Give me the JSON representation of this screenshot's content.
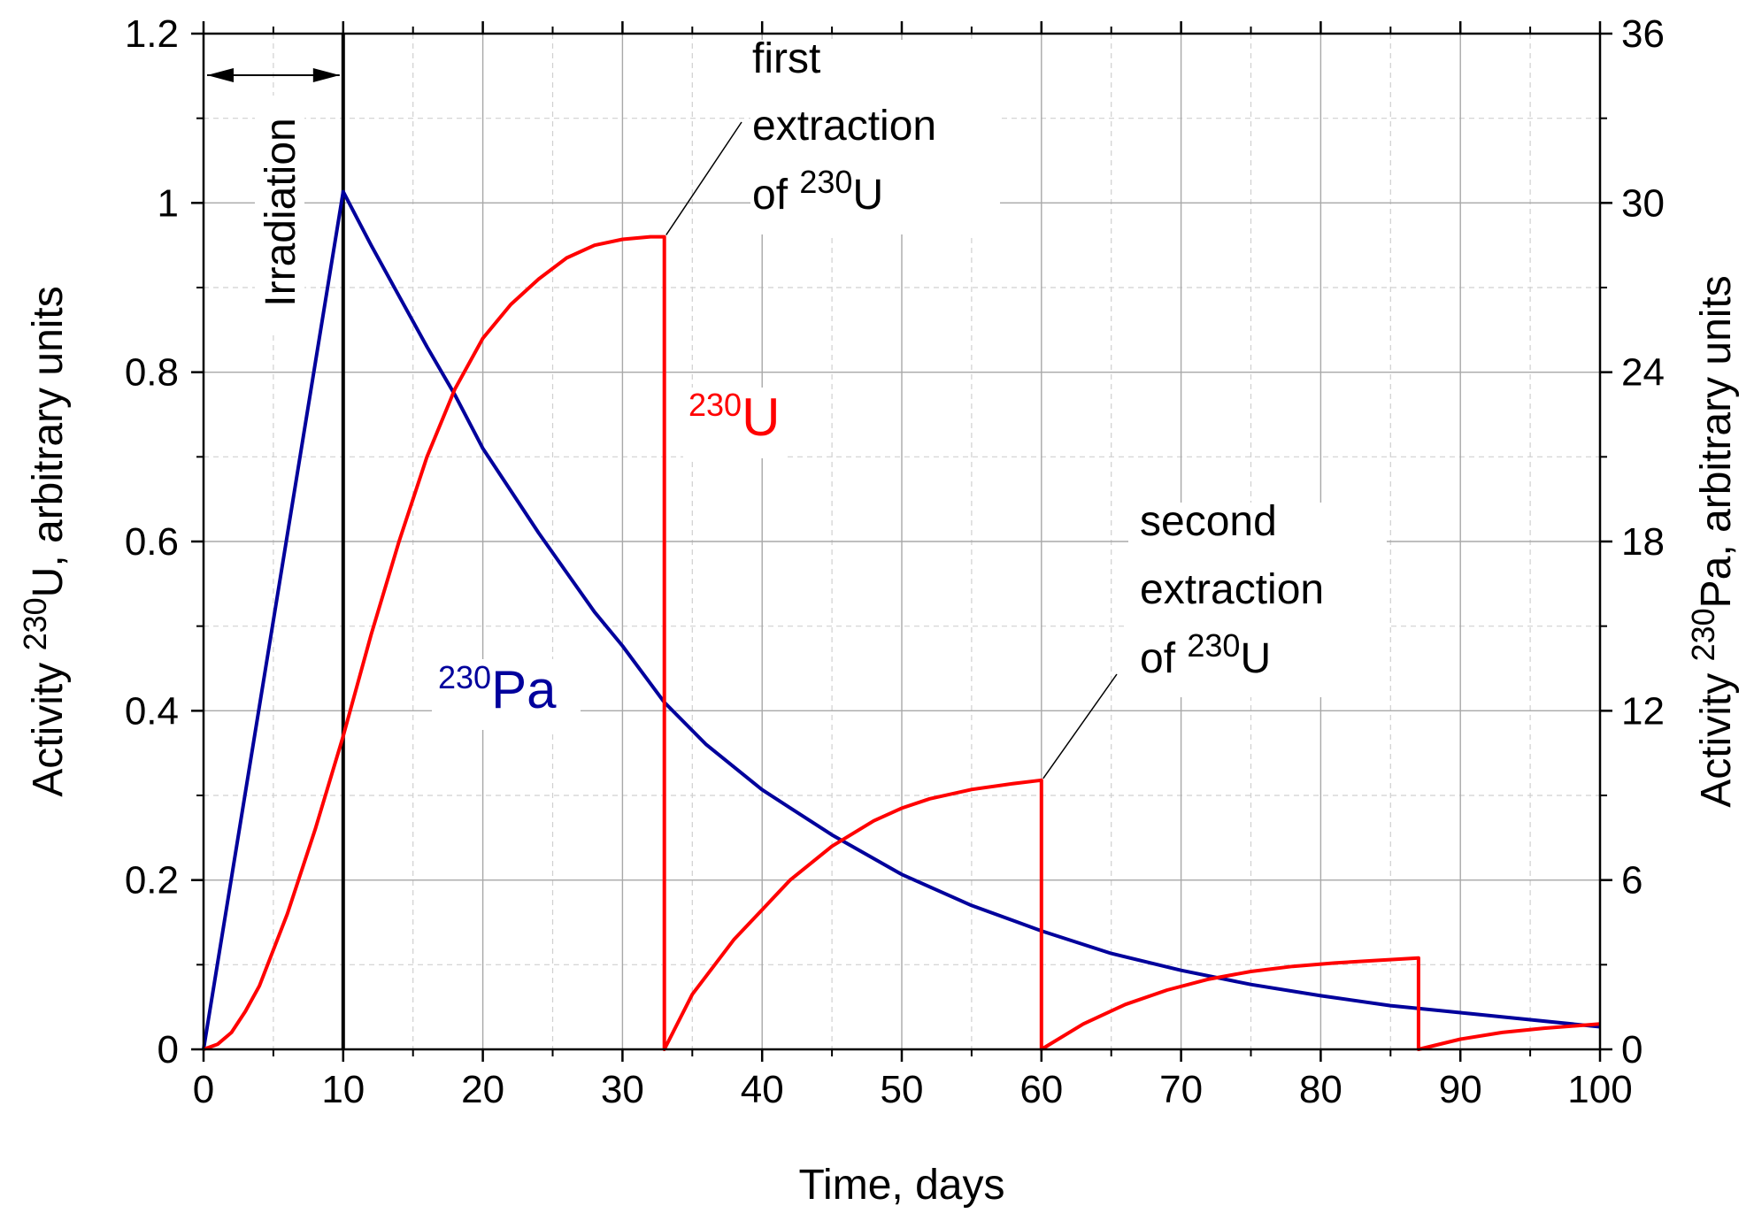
{
  "chart_data": {
    "type": "line",
    "xlabel": "Time, days",
    "ylabel_left": {
      "pre": "Activity ",
      "sup": "230",
      "post": "U, arbitrary units"
    },
    "ylabel_right": {
      "pre": "Activity ",
      "sup": "230",
      "post": "Pa, arbitrary units"
    },
    "xlim": [
      0,
      100
    ],
    "ylim_left": [
      0,
      1.2
    ],
    "ylim_right": [
      0,
      36
    ],
    "x_ticks": [
      0,
      10,
      20,
      30,
      40,
      50,
      60,
      70,
      80,
      90,
      100
    ],
    "x_tick_labels": [
      "0",
      "10",
      "20",
      "30",
      "40",
      "50",
      "60",
      "70",
      "80",
      "90",
      "100"
    ],
    "y_left_ticks": [
      0,
      0.2,
      0.4,
      0.6,
      0.8,
      1.0,
      1.2
    ],
    "y_left_tick_labels": [
      "0",
      "0.2",
      "0.4",
      "0.6",
      "0.8",
      "1",
      "1.2"
    ],
    "y_right_ticks": [
      0,
      6,
      12,
      18,
      24,
      30,
      36
    ],
    "y_right_tick_labels": [
      "0",
      "6",
      "12",
      "18",
      "24",
      "30",
      "36"
    ],
    "grid": true,
    "series": [
      {
        "name_sup": "230",
        "name_main": "Pa",
        "axis": "right",
        "color": "#00009c",
        "x": [
          0,
          10,
          12,
          14,
          16,
          18,
          20,
          22,
          24,
          26,
          28,
          30,
          33,
          36,
          40,
          45,
          50,
          55,
          60,
          65,
          70,
          75,
          80,
          85,
          90,
          95,
          100
        ],
        "y": [
          0,
          30.4,
          28.5,
          26.7,
          24.9,
          23.2,
          21.3,
          19.8,
          18.3,
          16.9,
          15.5,
          14.3,
          12.3,
          10.8,
          9.2,
          7.6,
          6.2,
          5.1,
          4.2,
          3.4,
          2.8,
          2.3,
          1.9,
          1.55,
          1.3,
          1.05,
          0.8
        ]
      },
      {
        "name_sup": "230",
        "name_main": "U",
        "axis": "left",
        "color": "#ff0000",
        "x": [
          0,
          1,
          2,
          3,
          4,
          6,
          8,
          10,
          12,
          14,
          16,
          18,
          20,
          22,
          24,
          26,
          28,
          30,
          32,
          33,
          33,
          35,
          38,
          40,
          42,
          45,
          48,
          50,
          52,
          55,
          58,
          60,
          60,
          63,
          66,
          69,
          72,
          75,
          78,
          81,
          84,
          87,
          87,
          90,
          93,
          96,
          100
        ],
        "y": [
          0,
          0.006,
          0.02,
          0.045,
          0.075,
          0.16,
          0.26,
          0.37,
          0.49,
          0.6,
          0.7,
          0.78,
          0.84,
          0.88,
          0.91,
          0.935,
          0.95,
          0.957,
          0.96,
          0.96,
          0,
          0.065,
          0.13,
          0.165,
          0.2,
          0.24,
          0.27,
          0.285,
          0.296,
          0.307,
          0.314,
          0.318,
          0,
          0.03,
          0.053,
          0.07,
          0.083,
          0.092,
          0.098,
          0.102,
          0.105,
          0.108,
          0,
          0.012,
          0.02,
          0.025,
          0.03
        ]
      }
    ],
    "annotations": {
      "irradiation": {
        "text": "Irradiation",
        "x_start": 0,
        "x_end": 10
      },
      "first_extraction": {
        "line1": "first",
        "line2": "extraction",
        "line3_pre": "of ",
        "line3_sup": "230",
        "line3_post": "U",
        "x": 33,
        "y": 0.96
      },
      "second_extraction": {
        "line1": "second",
        "line2": "extraction",
        "line3_pre": "of ",
        "line3_sup": "230",
        "line3_post": "U",
        "x": 60,
        "y": 0.318
      }
    }
  }
}
